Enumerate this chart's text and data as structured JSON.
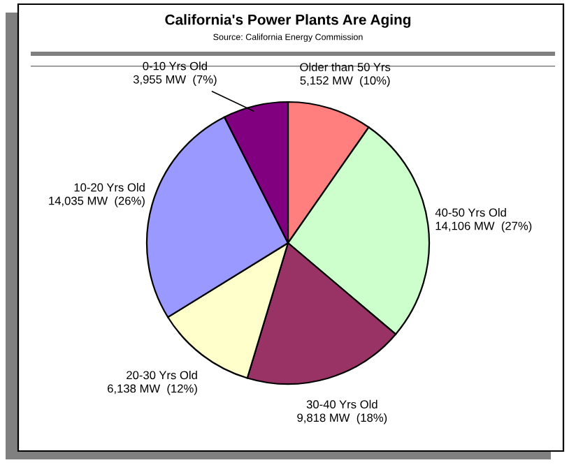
{
  "chart_data": {
    "type": "pie",
    "title": "California's Power Plants Are Aging",
    "subtitle": "Source: California Energy Commission",
    "categories": [
      "Older than 50 Yrs",
      "40-50 Yrs Old",
      "30-40 Yrs Old",
      "20-30 Yrs Old",
      "10-20 Yrs Old",
      "0-10 Yrs Old"
    ],
    "values": [
      5152,
      14106,
      9818,
      6138,
      14035,
      3955
    ],
    "value_labels": [
      "5,152 MW  (10%)",
      "14,106 MW  (27%)",
      "9,818 MW  (18%)",
      "6,138 MW  (12%)",
      "14,035 MW  (26%)",
      "3,955 MW  (7%)"
    ],
    "colors": [
      "#ff7f7f",
      "#ccffcc",
      "#993366",
      "#ffffcc",
      "#9999ff",
      "#800080"
    ],
    "legend": false
  }
}
